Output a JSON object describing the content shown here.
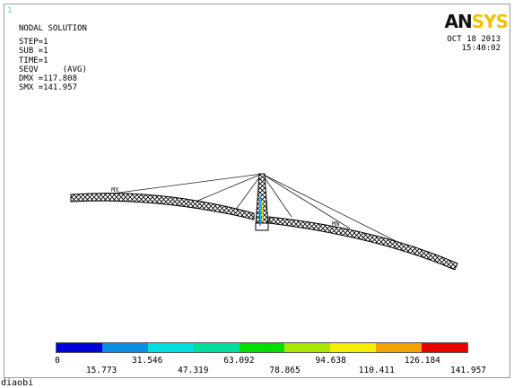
{
  "window_number": "1",
  "info": {
    "title": "NODAL SOLUTION",
    "step": "STEP=1",
    "sub": "SUB =1",
    "time": "TIME=1",
    "seqv": "SEQV     (AVG)",
    "dmx": "DMX =117.808",
    "smx": "SMX =141.957"
  },
  "logo": {
    "an": "AN",
    "sys": "SYS"
  },
  "datetime": {
    "date": "OCT 18 2013",
    "time": "15:40:02"
  },
  "markers": {
    "max": "MX",
    "min": "MN"
  },
  "legend": {
    "colors": [
      "#0000d8",
      "#0a8ee6",
      "#00e0e0",
      "#00dfa0",
      "#00e000",
      "#a8e800",
      "#f4ee00",
      "#f5a300",
      "#e80000"
    ],
    "ticks_top": [
      "0",
      "31.546",
      "63.092",
      "94.638",
      "126.184"
    ],
    "ticks_bottom": [
      "15.773",
      "47.319",
      "78.865",
      "110.411",
      "141.957"
    ]
  },
  "footer": "diaobi"
}
